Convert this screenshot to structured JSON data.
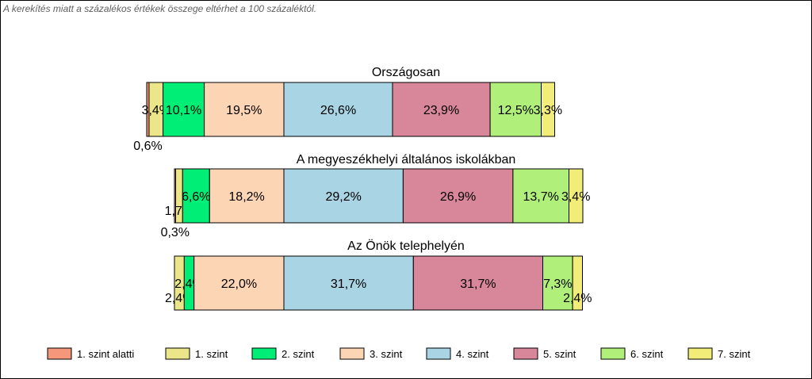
{
  "note": "A kerekítés miatt a  százalékos értékek összege eltérhet a 100 százaléktól.",
  "chart_data": {
    "type": "bar",
    "orientation": "horizontal-stacked-100",
    "categories": [
      "Országosan",
      "A megyeszékhelyi általános iskolákban",
      "Az Önök telephelyén"
    ],
    "series": [
      {
        "name": "1. szint alatti",
        "color": "#f4977a",
        "values": [
          0.6,
          0.3,
          0.0
        ],
        "labels": [
          "0,6%",
          "0,3%",
          ""
        ]
      },
      {
        "name": "1. szint",
        "color": "#ece68a",
        "values": [
          3.4,
          1.7,
          2.4
        ],
        "labels": [
          "3,4%",
          "1,7%",
          "2,4%"
        ]
      },
      {
        "name": "2. szint",
        "color": "#00ee76",
        "values": [
          10.1,
          6.6,
          2.4
        ],
        "labels": [
          "10,1%",
          "6,6%",
          "2,4%"
        ]
      },
      {
        "name": "3. szint",
        "color": "#fcd5b4",
        "values": [
          19.5,
          18.2,
          22.0
        ],
        "labels": [
          "19,5%",
          "18,2%",
          "22,0%"
        ]
      },
      {
        "name": "4. szint",
        "color": "#a8d4e4",
        "values": [
          26.6,
          29.2,
          31.7
        ],
        "labels": [
          "26,6%",
          "29,2%",
          "31,7%"
        ]
      },
      {
        "name": "5. szint",
        "color": "#d8869a",
        "values": [
          23.9,
          26.9,
          31.7
        ],
        "labels": [
          "23,9%",
          "26,9%",
          "31,7%"
        ]
      },
      {
        "name": "6. szint",
        "color": "#b0f07a",
        "values": [
          12.5,
          13.7,
          7.3
        ],
        "labels": [
          "12,5%",
          "13,7%",
          "7,3%"
        ]
      },
      {
        "name": "7. szint",
        "color": "#f2ec78",
        "values": [
          3.3,
          3.4,
          2.4
        ],
        "labels": [
          "3,3%",
          "3,4%",
          "2,4%"
        ]
      }
    ],
    "legend_position": "bottom",
    "grid": false
  }
}
